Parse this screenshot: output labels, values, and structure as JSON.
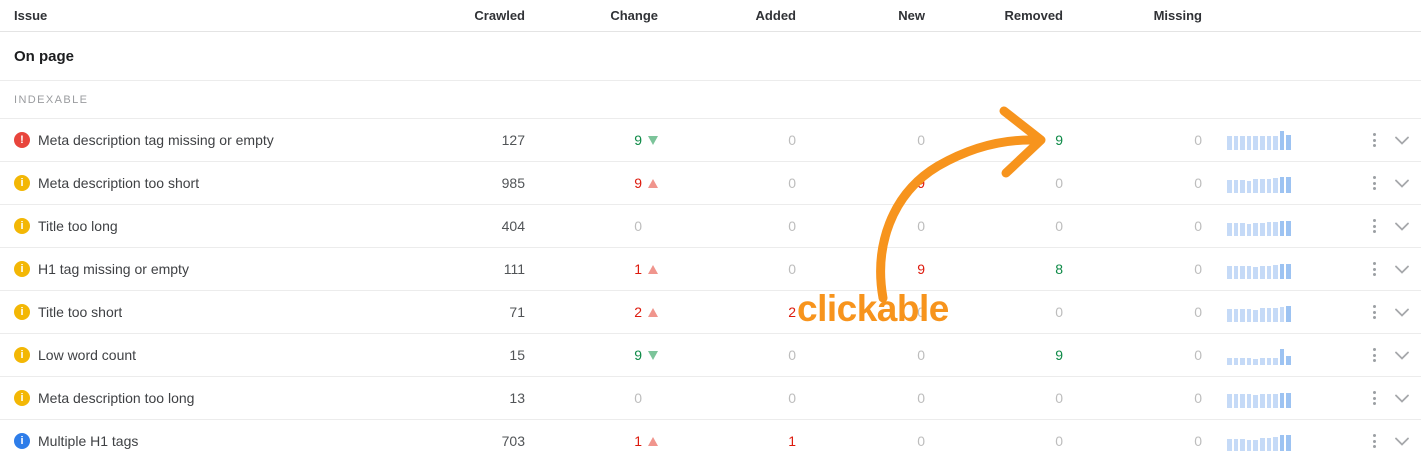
{
  "columns": {
    "issue": "Issue",
    "crawled": "Crawled",
    "change": "Change",
    "added": "Added",
    "new": "New",
    "removed": "Removed",
    "missing": "Missing"
  },
  "section": {
    "title": "On page",
    "subsection": "INDEXABLE"
  },
  "rows": [
    {
      "severity": "error",
      "icon_glyph": "!",
      "label": "Meta description tag missing or empty",
      "crawled": "127",
      "change": {
        "value": "9",
        "color": "green",
        "dir": "down"
      },
      "added": {
        "value": "0",
        "color": "gray"
      },
      "new": {
        "value": "0",
        "color": "gray"
      },
      "removed": {
        "value": "9",
        "color": "green"
      },
      "missing": {
        "value": "0",
        "color": "gray"
      },
      "spark": {
        "heights": [
          14,
          14,
          14,
          14,
          14,
          14,
          14,
          14,
          19,
          15
        ],
        "dark_from": 8
      }
    },
    {
      "severity": "warning",
      "icon_glyph": "i",
      "label": "Meta description too short",
      "crawled": "985",
      "change": {
        "value": "9",
        "color": "red",
        "dir": "up"
      },
      "added": {
        "value": "0",
        "color": "gray"
      },
      "new": {
        "value": "9",
        "color": "red"
      },
      "removed": {
        "value": "0",
        "color": "gray"
      },
      "missing": {
        "value": "0",
        "color": "gray"
      },
      "spark": {
        "heights": [
          13,
          13,
          13,
          12,
          14,
          14,
          14,
          15,
          16,
          16
        ],
        "dark_from": 8
      }
    },
    {
      "severity": "warning",
      "icon_glyph": "i",
      "label": "Title too long",
      "crawled": "404",
      "change": {
        "value": "0",
        "color": "gray",
        "dir": null
      },
      "added": {
        "value": "0",
        "color": "gray"
      },
      "new": {
        "value": "0",
        "color": "gray"
      },
      "removed": {
        "value": "0",
        "color": "gray"
      },
      "missing": {
        "value": "0",
        "color": "gray"
      },
      "spark": {
        "heights": [
          13,
          13,
          13,
          12,
          13,
          13,
          14,
          14,
          15,
          15
        ],
        "dark_from": 8
      }
    },
    {
      "severity": "warning",
      "icon_glyph": "i",
      "label": "H1 tag missing or empty",
      "crawled": "111",
      "change": {
        "value": "1",
        "color": "red",
        "dir": "up"
      },
      "added": {
        "value": "0",
        "color": "gray"
      },
      "new": {
        "value": "9",
        "color": "red"
      },
      "removed": {
        "value": "8",
        "color": "green"
      },
      "missing": {
        "value": "0",
        "color": "gray"
      },
      "spark": {
        "heights": [
          13,
          13,
          13,
          13,
          12,
          13,
          13,
          14,
          15,
          15
        ],
        "dark_from": 8
      }
    },
    {
      "severity": "warning",
      "icon_glyph": "i",
      "label": "Title too short",
      "crawled": "71",
      "change": {
        "value": "2",
        "color": "red",
        "dir": "up"
      },
      "added": {
        "value": "2",
        "color": "red"
      },
      "new": {
        "value": "0",
        "color": "gray"
      },
      "removed": {
        "value": "0",
        "color": "gray"
      },
      "missing": {
        "value": "0",
        "color": "gray"
      },
      "spark": {
        "heights": [
          13,
          13,
          13,
          13,
          12,
          14,
          14,
          14,
          15,
          16
        ],
        "dark_from": 9
      }
    },
    {
      "severity": "warning",
      "icon_glyph": "i",
      "label": "Low word count",
      "crawled": "15",
      "change": {
        "value": "9",
        "color": "green",
        "dir": "down"
      },
      "added": {
        "value": "0",
        "color": "gray"
      },
      "new": {
        "value": "0",
        "color": "gray"
      },
      "removed": {
        "value": "9",
        "color": "green"
      },
      "missing": {
        "value": "0",
        "color": "gray"
      },
      "spark": {
        "heights": [
          7,
          7,
          7,
          7,
          6,
          7,
          7,
          7,
          16,
          9
        ],
        "dark_from": 8
      }
    },
    {
      "severity": "warning",
      "icon_glyph": "i",
      "label": "Meta description too long",
      "crawled": "13",
      "change": {
        "value": "0",
        "color": "gray",
        "dir": null
      },
      "added": {
        "value": "0",
        "color": "gray"
      },
      "new": {
        "value": "0",
        "color": "gray"
      },
      "removed": {
        "value": "0",
        "color": "gray"
      },
      "missing": {
        "value": "0",
        "color": "gray"
      },
      "spark": {
        "heights": [
          14,
          14,
          14,
          14,
          13,
          14,
          14,
          14,
          15,
          15
        ],
        "dark_from": 8
      }
    },
    {
      "severity": "notice",
      "icon_glyph": "i",
      "label": "Multiple H1 tags",
      "crawled": "703",
      "change": {
        "value": "1",
        "color": "red",
        "dir": "up"
      },
      "added": {
        "value": "1",
        "color": "red"
      },
      "new": {
        "value": "0",
        "color": "gray"
      },
      "removed": {
        "value": "0",
        "color": "gray"
      },
      "missing": {
        "value": "0",
        "color": "gray"
      },
      "spark": {
        "heights": [
          12,
          12,
          12,
          11,
          11,
          13,
          13,
          14,
          16,
          16
        ],
        "dark_from": 8
      }
    }
  ],
  "annotation": {
    "text": "clickable"
  },
  "colors": {
    "green": "#0e8a47",
    "red": "#dd1a0d",
    "muted": "#bdbdbd",
    "error": "#e8453c",
    "warning": "#f3b705",
    "notice": "#2e7de9",
    "tri_up": "#f0958d",
    "tri_down": "#7cc49a",
    "spark_light": "#c5daf7",
    "spark_dark": "#9dc3f2",
    "annotation": "#f7941d"
  }
}
